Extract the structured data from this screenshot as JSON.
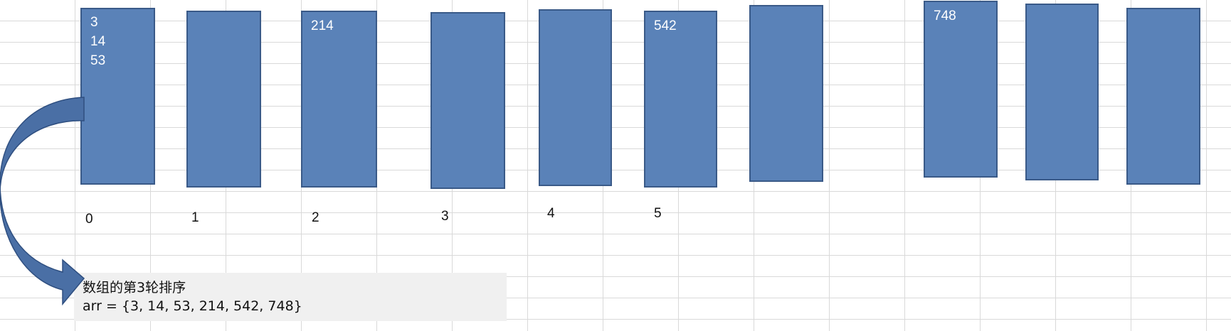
{
  "buckets": [
    {
      "index_label": "0",
      "values": [
        "3",
        "14",
        "53"
      ]
    },
    {
      "index_label": "1",
      "values": []
    },
    {
      "index_label": "2",
      "values": [
        "214"
      ]
    },
    {
      "index_label": "3",
      "values": []
    },
    {
      "index_label": "4",
      "values": []
    },
    {
      "index_label": "5",
      "values": [
        "542"
      ]
    },
    {
      "index_label": "",
      "values": []
    },
    {
      "index_label": "",
      "values": [
        "748"
      ]
    },
    {
      "index_label": "",
      "values": []
    },
    {
      "index_label": "",
      "values": []
    }
  ],
  "note": {
    "title": "数组的第3轮排序",
    "array_text": "arr = {3, 14, 53, 214, 542, 748}"
  },
  "colors": {
    "bucket_fill": "#5a82b8",
    "bucket_border": "#3a5a88",
    "arrow_fill": "#4a6fa5",
    "note_background": "#f0f0f0"
  },
  "icons": [
    "curved-arrow-icon"
  ]
}
